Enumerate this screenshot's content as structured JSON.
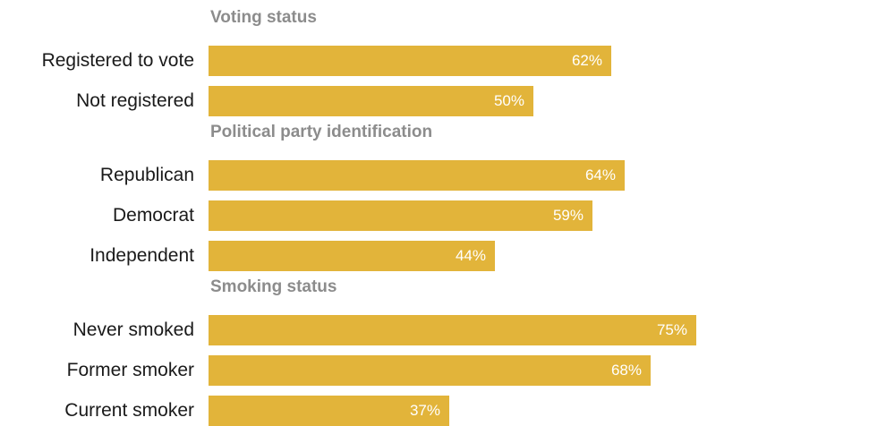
{
  "chart_data": {
    "type": "bar",
    "orientation": "horizontal",
    "value_suffix": "%",
    "colors": {
      "bar": "#e2b43a",
      "header": "#8c8c8c",
      "label": "#1a1a1a",
      "value": "#ffffff"
    },
    "groups": [
      {
        "title": "Voting status",
        "categories": [
          "Registered to vote",
          "Not registered"
        ],
        "values": [
          62,
          50
        ],
        "value_labels": [
          "62%",
          "50%"
        ]
      },
      {
        "title": "Political party identification",
        "categories": [
          "Republican",
          "Democrat",
          "Independent"
        ],
        "values": [
          64,
          59,
          44
        ],
        "value_labels": [
          "64%",
          "59%",
          "44%"
        ]
      },
      {
        "title": "Smoking status",
        "categories": [
          "Never smoked",
          "Former smoker",
          "Current smoker"
        ],
        "values": [
          75,
          68,
          37
        ],
        "value_labels": [
          "75%",
          "68%",
          "37%"
        ]
      }
    ]
  }
}
